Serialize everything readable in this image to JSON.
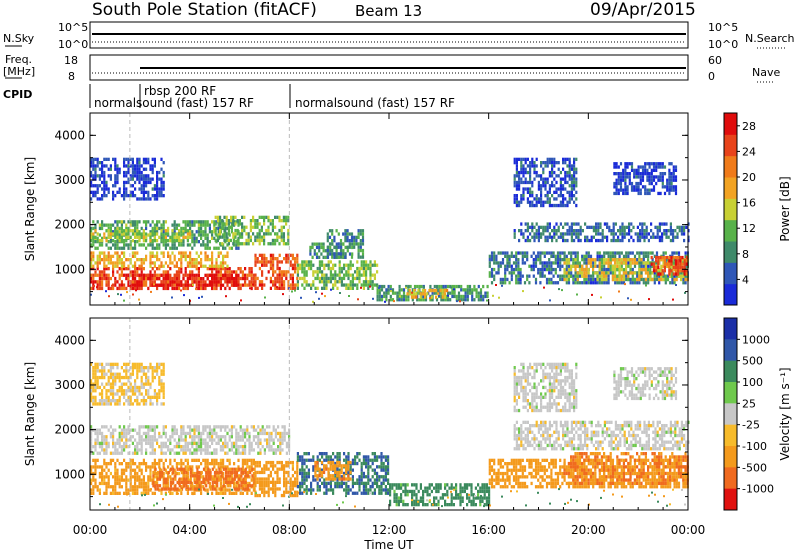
{
  "header": {
    "station": "South Pole Station (fitACF)",
    "beam": "Beam 13",
    "date": "09/Apr/2015"
  },
  "panels": {
    "nsky": {
      "label": "N.Sky",
      "ticks": [
        "10^5",
        "10^0"
      ]
    },
    "nsearch": {
      "label": "N.Search",
      "ticks": [
        "10^5",
        "10^0"
      ]
    },
    "freq": {
      "label_line1": "Freq.",
      "label_line2": "[MHz]",
      "ticks": [
        "18",
        "8"
      ]
    },
    "nave": {
      "label": "Nave",
      "ticks": [
        "60",
        "0"
      ]
    },
    "cpid": {
      "label": "CPID",
      "entries": [
        {
          "text": "normalsound (fast) 157 RF",
          "start_hour": 0
        },
        {
          "text": "rbsp 200 RF",
          "start_hour": 1.6
        },
        {
          "text": "normalsound (fast) 157 RF",
          "start_hour": 8.0
        }
      ]
    }
  },
  "colors": {
    "power": [
      "#1a2bd8",
      "#2f57b7",
      "#3f8a6a",
      "#58b24a",
      "#c8d034",
      "#f2a323",
      "#f07b1a",
      "#e8431a",
      "#e00c0c"
    ],
    "velocity": [
      "#e0110f",
      "#f06a1f",
      "#f49a1c",
      "#f7bb2b",
      "#c7c7c7",
      "#6fc94d",
      "#3b8a5d",
      "#3057a8",
      "#1b2fa7"
    ]
  },
  "chart_data": [
    {
      "type": "heatmap",
      "xlabel": "Time UT",
      "ylabel": "Slant Range [km]",
      "xticks": [
        "00:00",
        "04:00",
        "08:00",
        "12:00",
        "16:00",
        "20:00",
        "00:00"
      ],
      "xlim": [
        0,
        24
      ],
      "ylim": [
        200,
        4500
      ],
      "yticks": [
        1000,
        2000,
        3000,
        4000
      ],
      "colorbar": {
        "label": "Power [dB]",
        "ticks": [
          "4",
          "8",
          "12",
          "16",
          "20",
          "24",
          "28"
        ],
        "range": [
          0,
          30
        ]
      },
      "regions": [
        {
          "t": [
            0.0,
            6.6
          ],
          "r": [
            550,
            1050
          ],
          "v": 25
        },
        {
          "t": [
            0.0,
            5.5
          ],
          "r": [
            1050,
            1400
          ],
          "v": 18
        },
        {
          "t": [
            1.5,
            6.0
          ],
          "r": [
            650,
            900
          ],
          "v": 29
        },
        {
          "t": [
            6.6,
            8.3
          ],
          "r": [
            550,
            1350
          ],
          "v": 24
        },
        {
          "t": [
            8.3,
            11.5
          ],
          "r": [
            600,
            1200
          ],
          "v": 12
        },
        {
          "t": [
            8.8,
            10.5
          ],
          "r": [
            1300,
            1600
          ],
          "v": 9
        },
        {
          "t": [
            0.0,
            6.0
          ],
          "r": [
            1500,
            2100
          ],
          "v": 10
        },
        {
          "t": [
            0.0,
            4.0
          ],
          "r": [
            1650,
            1900
          ],
          "v": 14
        },
        {
          "t": [
            5.0,
            8.0
          ],
          "r": [
            1600,
            2200
          ],
          "v": 12
        },
        {
          "t": [
            9.5,
            11.0
          ],
          "r": [
            1300,
            1900
          ],
          "v": 8
        },
        {
          "t": [
            11.5,
            16.0
          ],
          "r": [
            350,
            650
          ],
          "v": 9
        },
        {
          "t": [
            12.7,
            14.3
          ],
          "r": [
            350,
            560
          ],
          "v": 17
        },
        {
          "t": [
            16.0,
            24.0
          ],
          "r": [
            700,
            1400
          ],
          "v": 7
        },
        {
          "t": [
            19.0,
            24.0
          ],
          "r": [
            750,
            1250
          ],
          "v": 16
        },
        {
          "t": [
            22.5,
            24.0
          ],
          "r": [
            900,
            1300
          ],
          "v": 24
        },
        {
          "t": [
            17.0,
            24.0
          ],
          "r": [
            1650,
            2050
          ],
          "v": 6
        },
        {
          "t": [
            17.0,
            19.5
          ],
          "r": [
            2400,
            3500
          ],
          "v": 4
        },
        {
          "t": [
            0.0,
            3.0
          ],
          "r": [
            2600,
            3500
          ],
          "v": 3
        },
        {
          "t": [
            21.0,
            23.5
          ],
          "r": [
            2700,
            3400
          ],
          "v": 3
        }
      ]
    },
    {
      "type": "heatmap",
      "xlabel": "Time UT",
      "ylabel": "Slant Range [km]",
      "xticks": [
        "00:00",
        "04:00",
        "08:00",
        "12:00",
        "16:00",
        "20:00",
        "00:00"
      ],
      "xlim": [
        0,
        24
      ],
      "ylim": [
        200,
        4500
      ],
      "yticks": [
        1000,
        2000,
        3000,
        4000
      ],
      "colorbar": {
        "label": "Velocity [m s⁻¹]",
        "ticks": [
          "1000",
          "500",
          "100",
          "25",
          "-25",
          "-100",
          "-500",
          "-1000"
        ]
      },
      "regions": [
        {
          "t": [
            0.0,
            6.6
          ],
          "r": [
            550,
            1350
          ],
          "v": -150
        },
        {
          "t": [
            2.5,
            6.6
          ],
          "r": [
            650,
            1150
          ],
          "v": -700
        },
        {
          "t": [
            6.6,
            8.3
          ],
          "r": [
            550,
            1300
          ],
          "v": -200
        },
        {
          "t": [
            8.3,
            12.0
          ],
          "r": [
            600,
            1500
          ],
          "v": 500
        },
        {
          "t": [
            9.0,
            10.5
          ],
          "r": [
            900,
            1300
          ],
          "v": -400
        },
        {
          "t": [
            0.0,
            8.0
          ],
          "r": [
            1500,
            2100
          ],
          "v": 0
        },
        {
          "t": [
            12.0,
            16.0
          ],
          "r": [
            300,
            800
          ],
          "v": 150
        },
        {
          "t": [
            16.0,
            24.0
          ],
          "r": [
            700,
            1350
          ],
          "v": -200
        },
        {
          "t": [
            19.0,
            24.0
          ],
          "r": [
            800,
            1500
          ],
          "v": -500
        },
        {
          "t": [
            17.0,
            24.0
          ],
          "r": [
            1600,
            2200
          ],
          "v": 0
        },
        {
          "t": [
            17.0,
            19.5
          ],
          "r": [
            2400,
            3500
          ],
          "v": 0
        },
        {
          "t": [
            0.0,
            3.0
          ],
          "r": [
            2600,
            3500
          ],
          "v": -40
        },
        {
          "t": [
            21.0,
            23.5
          ],
          "r": [
            2700,
            3400
          ],
          "v": 0
        }
      ]
    }
  ]
}
